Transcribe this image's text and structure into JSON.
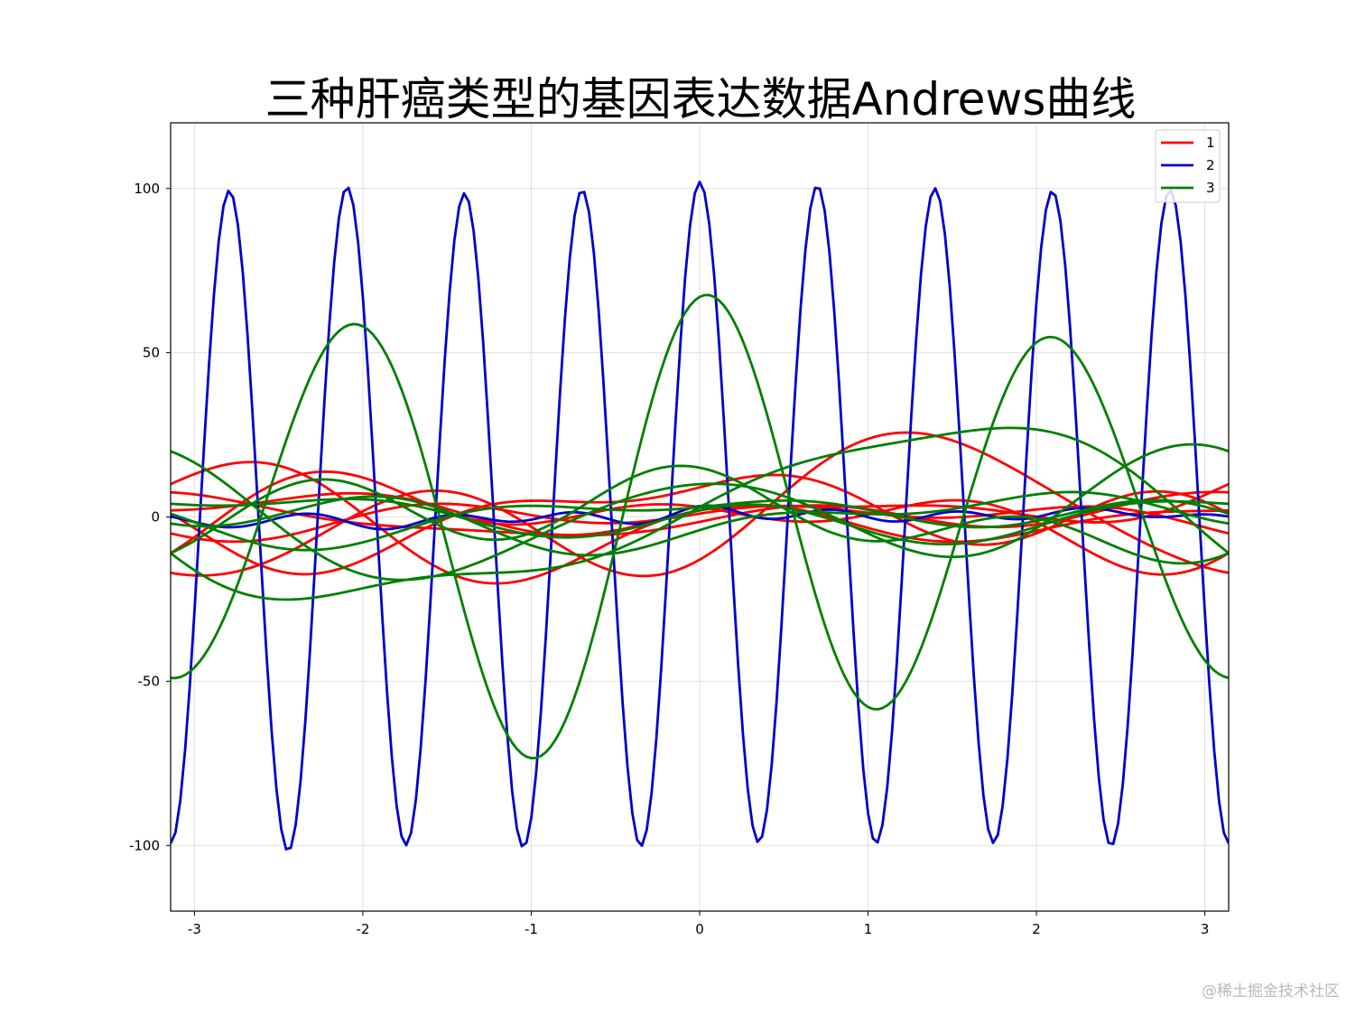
{
  "chart_data": {
    "type": "line",
    "title": "三种肝癌类型的基因表达数据Andrews曲线",
    "xlim": [
      -3.14159,
      3.14159
    ],
    "ylim": [
      -120,
      120
    ],
    "x_ticks": [
      -3,
      -2,
      -1,
      0,
      1,
      2,
      3
    ],
    "x_tick_labels": [
      "-3",
      "-2",
      "-1",
      "0",
      "1",
      "2",
      "3"
    ],
    "y_ticks": [
      -100,
      -50,
      0,
      50,
      100
    ],
    "y_tick_labels": [
      "-100",
      "-50",
      "0",
      "50",
      "100"
    ],
    "grid": true,
    "legend_position": "top-right",
    "legend": [
      "1",
      "2",
      "3"
    ],
    "colors": {
      "1": "#ff0000",
      "2": "#0000cc",
      "3": "#008000"
    },
    "samples_per_curve": 220,
    "andrews_coefficients": {
      "1": [
        [
          0.0,
          10.0,
          4.0,
          5.0,
          -15.0,
          3.0,
          -2.0
        ],
        [
          0.0,
          5.0,
          -6.0,
          8.0,
          6.0,
          -4.0,
          2.0
        ],
        [
          0.0,
          3.0,
          7.0,
          -4.0,
          5.0,
          6.0,
          -3.0
        ],
        [
          0.0,
          -4.0,
          3.0,
          6.0,
          -4.0,
          -5.0,
          4.0
        ],
        [
          0.0,
          2.0,
          -3.0,
          2.0,
          3.0,
          1.5,
          -1.5
        ],
        [
          0.0,
          -3.0,
          -2.0,
          3.0,
          2.0,
          2.5,
          2.0
        ],
        [
          0.0,
          1.0,
          2.0,
          -1.0,
          -2.0,
          3.0,
          1.0
        ]
      ],
      "2": [
        [
          0.0,
          0.5,
          0.5,
          0.3,
          0.3,
          0.2,
          0.2,
          -0.2,
          0.4,
          0.2,
          -0.3,
          0.2,
          0.4,
          -0.3,
          0.3,
          0.2,
          0.2,
          0.2,
          100.0
        ],
        [
          0.0,
          1.0,
          0.5,
          -0.5,
          0.3,
          0.4,
          0.3,
          0.2,
          -0.3,
          0.4,
          0.5,
          -0.3,
          0.2,
          0.3,
          -0.2,
          0.1,
          1.5,
          0.2,
          0.5
        ]
      ],
      "3": [
        [
          0.0,
          3.0,
          -2.0,
          5.0,
          3.0,
          5.0,
          60.0,
          0.0,
          6.0
        ],
        [
          0.0,
          25.0,
          5.0,
          -3.0,
          -4.0,
          3.0,
          2.0
        ],
        [
          0.0,
          5.0,
          -3.0,
          -4.0,
          15.0,
          2.0,
          -2.0
        ],
        [
          0.0,
          -4.0,
          5.0,
          3.0,
          2.0,
          -4.0,
          8.0
        ],
        [
          0.0,
          2.0,
          3.0,
          -3.0,
          2.0,
          3.0,
          -2.0
        ],
        [
          0.0,
          -2.0,
          -3.0,
          2.0,
          3.0,
          3.0,
          2.0
        ],
        [
          0.0,
          3.0,
          -4.0,
          2.0,
          -3.0,
          3.0,
          3.0
        ]
      ]
    }
  },
  "watermark": "@稀土掘金技术社区"
}
